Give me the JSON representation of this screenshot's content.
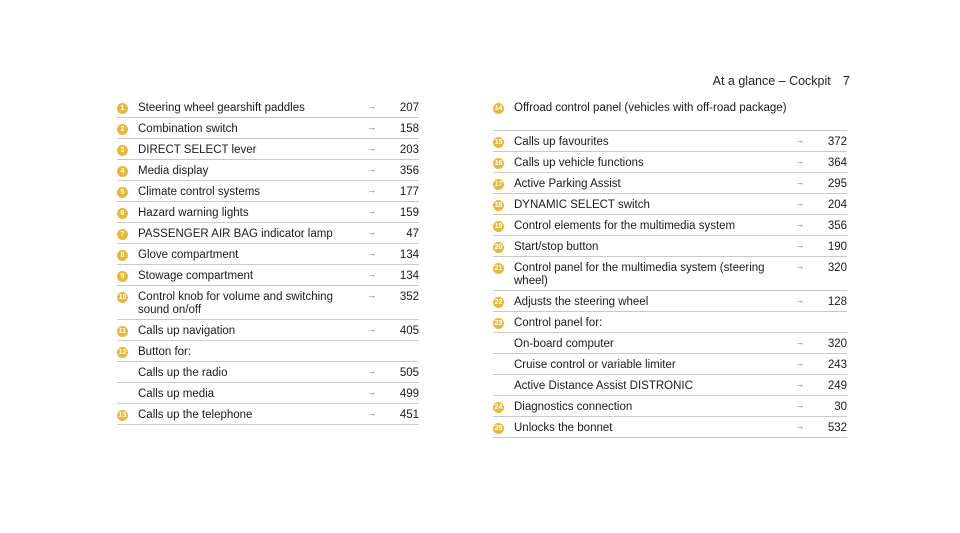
{
  "header": {
    "title": "At a glance – Cockpit",
    "page": "7"
  },
  "arrow_glyph": "→",
  "left": [
    {
      "n": "1",
      "label": "Steering wheel gearshift paddles",
      "page": "207"
    },
    {
      "n": "2",
      "label": "Combination switch",
      "page": "158"
    },
    {
      "n": "3",
      "label": "DIRECT SELECT lever",
      "page": "203"
    },
    {
      "n": "4",
      "label": "Media display",
      "page": "356"
    },
    {
      "n": "5",
      "label": "Climate control systems",
      "page": "177"
    },
    {
      "n": "6",
      "label": "Hazard warning lights",
      "page": "159"
    },
    {
      "n": "7",
      "label": "PASSENGER AIR BAG indicator lamp",
      "page": "47"
    },
    {
      "n": "8",
      "label": "Glove compartment",
      "page": "134"
    },
    {
      "n": "9",
      "label": "Stowage compartment",
      "page": "134"
    },
    {
      "n": "10",
      "label": "Control knob for volume and switching sound on/off",
      "page": "352"
    },
    {
      "n": "11",
      "label": "Calls up navigation",
      "page": "405"
    },
    {
      "n": "12",
      "label": "Button for:",
      "page": ""
    },
    {
      "n": "",
      "label": "Calls up the radio",
      "page": "505"
    },
    {
      "n": "",
      "label": "Calls up media",
      "page": "499"
    },
    {
      "n": "13",
      "label": "Calls up the telephone",
      "page": "451"
    }
  ],
  "right": [
    {
      "n": "14",
      "label": "Offroad control panel (vehicles with off-road package)",
      "page": ""
    },
    {
      "n": "15",
      "label": "Calls up favourites",
      "page": "372"
    },
    {
      "n": "16",
      "label": "Calls up vehicle functions",
      "page": "364"
    },
    {
      "n": "17",
      "label": "Active Parking Assist",
      "page": "295"
    },
    {
      "n": "18",
      "label": "DYNAMIC SELECT switch",
      "page": "204"
    },
    {
      "n": "19",
      "label": "Control elements for the multimedia system",
      "page": "356"
    },
    {
      "n": "20",
      "label": "Start/stop button",
      "page": "190"
    },
    {
      "n": "21",
      "label": "Control panel for the multimedia system (steering wheel)",
      "page": "320"
    },
    {
      "n": "22",
      "label": "Adjusts the steering wheel",
      "page": "128"
    },
    {
      "n": "23",
      "label": "Control panel for:",
      "page": ""
    },
    {
      "n": "",
      "label": "On-board computer",
      "page": "320"
    },
    {
      "n": "",
      "label": "Cruise control or variable limiter",
      "page": "243"
    },
    {
      "n": "",
      "label": "Active Distance Assist DISTRONIC",
      "page": "249"
    },
    {
      "n": "24",
      "label": "Diagnostics connection",
      "page": "30"
    },
    {
      "n": "25",
      "label": "Unlocks the bonnet",
      "page": "532"
    }
  ]
}
